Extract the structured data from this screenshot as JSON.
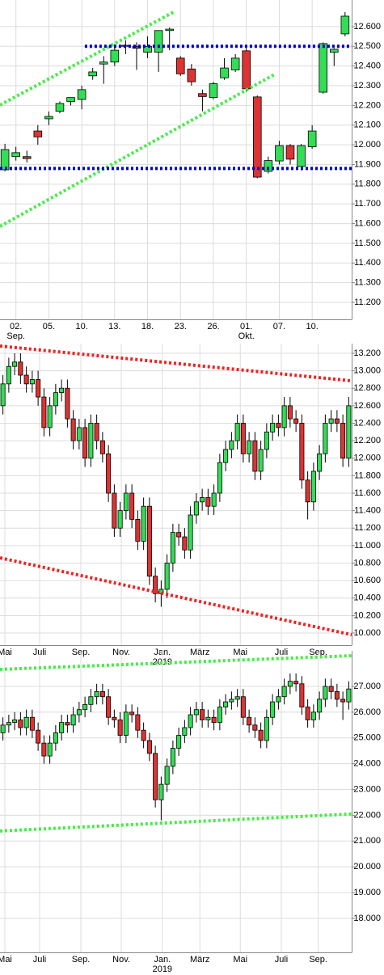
{
  "chart_data": [
    {
      "type": "candlestick",
      "up_color": "#33dd55",
      "down_color": "#dd3333",
      "grid": true,
      "xlim": [
        -0.45,
        31.6
      ],
      "ylim": [
        11.114,
        12.735
      ],
      "yticks": [
        {
          "value": 11.2,
          "label": "11.200"
        },
        {
          "value": 11.3,
          "label": "11.300"
        },
        {
          "value": 11.4,
          "label": "11.400"
        },
        {
          "value": 11.5,
          "label": "11.500"
        },
        {
          "value": 11.6,
          "label": "11.600"
        },
        {
          "value": 11.7,
          "label": "11.700"
        },
        {
          "value": 11.8,
          "label": "11.800"
        },
        {
          "value": 11.9,
          "label": "11.900"
        },
        {
          "value": 12.0,
          "label": "12.000"
        },
        {
          "value": 12.1,
          "label": "12.100"
        },
        {
          "value": 12.2,
          "label": "12.200"
        },
        {
          "value": 12.3,
          "label": "12.300"
        },
        {
          "value": 12.4,
          "label": "12.400"
        },
        {
          "value": 12.5,
          "label": "12.500"
        },
        {
          "value": 12.6,
          "label": "12.600"
        }
      ],
      "xticks": [
        {
          "value": 1,
          "label": "02."
        },
        {
          "value": 4,
          "label": "05."
        },
        {
          "value": 7,
          "label": "10."
        },
        {
          "value": 10,
          "label": "13."
        },
        {
          "value": 13,
          "label": "18."
        },
        {
          "value": 16,
          "label": "23."
        },
        {
          "value": 19,
          "label": "26."
        },
        {
          "value": 22,
          "label": "01."
        },
        {
          "value": 25,
          "label": "07."
        },
        {
          "value": 28,
          "label": "10."
        }
      ],
      "xticks_sub": [
        {
          "value": 1,
          "label": "Sep."
        },
        {
          "value": 22,
          "label": "Okt."
        }
      ],
      "open": [
        11.873,
        11.94,
        11.94,
        12.07,
        12.132,
        12.17,
        12.22,
        12.23,
        12.35,
        12.41,
        12.42,
        12.505,
        12.5,
        12.47,
        12.47,
        12.58,
        12.44,
        12.385,
        12.26,
        12.24,
        12.34,
        12.38,
        12.477,
        12.243,
        11.865,
        11.918,
        11.996,
        11.89,
        11.99,
        12.267,
        12.47,
        12.563
      ],
      "high": [
        12.005,
        11.99,
        11.97,
        12.1,
        12.169,
        12.22,
        12.24,
        12.3,
        12.39,
        12.45,
        12.51,
        12.53,
        12.52,
        12.55,
        12.58,
        12.595,
        12.45,
        12.41,
        12.28,
        12.32,
        12.44,
        12.46,
        12.49,
        12.25,
        11.94,
        12.02,
        12.004,
        12.004,
        12.1,
        12.52,
        12.49,
        12.674
      ],
      "low": [
        11.865,
        11.92,
        11.91,
        12.0,
        12.1,
        12.16,
        12.2,
        12.18,
        12.33,
        12.31,
        12.4,
        12.46,
        12.38,
        12.44,
        12.37,
        12.48,
        12.35,
        12.3,
        12.17,
        12.23,
        12.33,
        12.37,
        12.27,
        11.83,
        11.855,
        11.9,
        11.9,
        11.87,
        11.98,
        12.26,
        12.4,
        12.55
      ],
      "close": [
        11.976,
        11.96,
        11.93,
        12.04,
        12.144,
        12.21,
        12.24,
        12.28,
        12.37,
        12.42,
        12.48,
        12.5,
        12.49,
        12.5,
        12.58,
        12.587,
        12.36,
        12.32,
        12.245,
        12.31,
        12.39,
        12.44,
        12.284,
        11.836,
        11.92,
        11.996,
        11.927,
        11.996,
        12.07,
        12.514,
        12.485,
        12.653
      ],
      "lines": [
        {
          "color": "#44ee44",
          "points": [
            [
              -0.45,
              12.202
            ],
            [
              15.38,
              12.674
            ]
          ]
        },
        {
          "color": "#44ee44",
          "points": [
            [
              -0.45,
              11.586
            ],
            [
              24.59,
              12.358
            ]
          ]
        },
        {
          "color": "#0000cc",
          "points": [
            [
              7.28,
              12.5
            ],
            [
              31.6,
              12.5
            ]
          ]
        },
        {
          "color": "#0000cc",
          "points": [
            [
              -0.45,
              11.88
            ],
            [
              31.6,
              11.88
            ]
          ]
        }
      ]
    },
    {
      "type": "candlestick",
      "up_color": "#33dd55",
      "down_color": "#dd3333",
      "grid": true,
      "xlim": [
        -0.5,
        59.5
      ],
      "ylim": [
        9.861,
        13.311
      ],
      "yticks": [
        {
          "value": 10.0,
          "label": "10.000"
        },
        {
          "value": 10.2,
          "label": "10.200"
        },
        {
          "value": 10.4,
          "label": "10.400"
        },
        {
          "value": 10.6,
          "label": "10.600"
        },
        {
          "value": 10.8,
          "label": "10.800"
        },
        {
          "value": 11.0,
          "label": "11.000"
        },
        {
          "value": 11.2,
          "label": "11.200"
        },
        {
          "value": 11.4,
          "label": "11.400"
        },
        {
          "value": 11.6,
          "label": "11.600"
        },
        {
          "value": 11.8,
          "label": "11.800"
        },
        {
          "value": 12.0,
          "label": "12.000"
        },
        {
          "value": 12.2,
          "label": "12.200"
        },
        {
          "value": 12.4,
          "label": "12.400"
        },
        {
          "value": 12.6,
          "label": "12.600"
        },
        {
          "value": 12.8,
          "label": "12.800"
        },
        {
          "value": 13.0,
          "label": "13.000"
        },
        {
          "value": 13.2,
          "label": "13.200"
        }
      ],
      "xticks": [
        {
          "value": 0.33,
          "label": "Mai"
        },
        {
          "value": 6.26,
          "label": "Juli"
        },
        {
          "value": 13.3,
          "label": "Sep."
        },
        {
          "value": 20.2,
          "label": "Nov."
        },
        {
          "value": 27.2,
          "label": "Jan."
        },
        {
          "value": 33.6,
          "label": "März"
        },
        {
          "value": 40.5,
          "label": "Mai"
        },
        {
          "value": 47.5,
          "label": "Juli"
        },
        {
          "value": 53.8,
          "label": "Sep."
        }
      ],
      "xticks_sub": [
        {
          "value": 27.2,
          "label": "2019"
        }
      ],
      "open": [
        12.6,
        12.85,
        13.05,
        13.1,
        12.95,
        12.85,
        12.9,
        12.7,
        12.35,
        12.6,
        12.75,
        12.8,
        12.45,
        12.2,
        12.35,
        12.0,
        12.4,
        12.2,
        12.05,
        11.6,
        11.2,
        11.4,
        11.6,
        11.3,
        11.05,
        11.45,
        10.65,
        10.45,
        10.5,
        10.8,
        11.15,
        11.1,
        10.95,
        11.35,
        11.5,
        11.55,
        11.45,
        11.6,
        11.95,
        12.1,
        12.2,
        12.4,
        12.05,
        12.2,
        11.85,
        12.1,
        12.3,
        12.4,
        12.35,
        12.6,
        12.45,
        12.4,
        11.75,
        11.5,
        11.85,
        12.05,
        12.4,
        12.45,
        12.4,
        12.0
      ],
      "high": [
        12.95,
        13.15,
        13.2,
        13.2,
        13.05,
        13.0,
        13.0,
        12.8,
        12.7,
        12.85,
        12.9,
        12.9,
        12.55,
        12.45,
        12.45,
        12.5,
        12.5,
        12.3,
        12.15,
        11.7,
        11.5,
        11.7,
        11.7,
        11.4,
        11.55,
        11.55,
        10.75,
        10.6,
        10.9,
        11.25,
        11.25,
        11.2,
        11.45,
        11.6,
        11.65,
        11.65,
        11.7,
        12.05,
        12.2,
        12.3,
        12.5,
        12.5,
        12.3,
        12.3,
        12.2,
        12.4,
        12.5,
        12.5,
        12.7,
        12.7,
        12.55,
        12.5,
        11.85,
        11.95,
        12.15,
        12.5,
        12.55,
        12.55,
        12.5,
        12.7
      ],
      "low": [
        12.5,
        12.75,
        12.95,
        12.85,
        12.75,
        12.75,
        12.6,
        12.25,
        12.25,
        12.5,
        12.65,
        12.35,
        12.1,
        12.1,
        11.9,
        11.9,
        12.1,
        11.95,
        11.5,
        11.1,
        11.1,
        11.3,
        11.2,
        10.95,
        10.95,
        10.55,
        10.35,
        10.3,
        10.4,
        10.7,
        11.0,
        10.85,
        10.85,
        11.25,
        11.4,
        11.35,
        11.35,
        11.5,
        11.85,
        12.0,
        12.1,
        11.95,
        11.95,
        11.75,
        11.75,
        12.0,
        12.2,
        12.25,
        12.25,
        12.35,
        12.3,
        11.65,
        11.3,
        11.4,
        11.75,
        11.95,
        12.3,
        12.3,
        11.9,
        11.9
      ],
      "close": [
        12.85,
        13.05,
        13.1,
        12.95,
        12.85,
        12.9,
        12.7,
        12.35,
        12.6,
        12.75,
        12.8,
        12.45,
        12.2,
        12.35,
        12.0,
        12.4,
        12.2,
        12.05,
        11.6,
        11.2,
        11.4,
        11.6,
        11.3,
        11.05,
        11.45,
        10.65,
        10.45,
        10.5,
        10.8,
        11.15,
        11.1,
        10.95,
        11.35,
        11.5,
        11.55,
        11.45,
        11.6,
        11.95,
        12.1,
        12.2,
        12.4,
        12.05,
        12.2,
        11.85,
        12.1,
        12.3,
        12.4,
        12.35,
        12.6,
        12.45,
        12.4,
        11.75,
        11.5,
        11.85,
        12.05,
        12.4,
        12.45,
        12.4,
        12.0,
        12.6
      ],
      "lines": [
        {
          "color": "#ee2222",
          "points": [
            [
              -0.5,
              13.283
            ],
            [
              59.5,
              12.885
            ]
          ]
        },
        {
          "color": "#ee2222",
          "points": [
            [
              -0.5,
              10.86
            ],
            [
              59.5,
              9.98
            ]
          ]
        }
      ]
    },
    {
      "type": "candlestick",
      "up_color": "#33dd55",
      "down_color": "#dd3333",
      "grid": true,
      "xlim": [
        -0.5,
        59.5
      ],
      "ylim": [
        16.68,
        28.38
      ],
      "yticks": [
        {
          "value": 18,
          "label": "18.000"
        },
        {
          "value": 19,
          "label": "19.000"
        },
        {
          "value": 20,
          "label": "20.000"
        },
        {
          "value": 21,
          "label": "21.000"
        },
        {
          "value": 22,
          "label": "22.000"
        },
        {
          "value": 23,
          "label": "23.000"
        },
        {
          "value": 24,
          "label": "24.000"
        },
        {
          "value": 25,
          "label": "25.000"
        },
        {
          "value": 26,
          "label": "26.000"
        },
        {
          "value": 27,
          "label": "27.000"
        }
      ],
      "xticks": [
        {
          "value": 0.33,
          "label": "Mai"
        },
        {
          "value": 6.26,
          "label": "Juli"
        },
        {
          "value": 13.3,
          "label": "Sep."
        },
        {
          "value": 20.2,
          "label": "Nov."
        },
        {
          "value": 27.2,
          "label": "Jan."
        },
        {
          "value": 33.6,
          "label": "März"
        },
        {
          "value": 40.5,
          "label": "Mai"
        },
        {
          "value": 47.5,
          "label": "Juli"
        },
        {
          "value": 53.8,
          "label": "Sep."
        }
      ],
      "xticks_sub": [
        {
          "value": 27.2,
          "label": "2019"
        }
      ],
      "open": [
        25.2,
        25.5,
        25.6,
        25.7,
        25.4,
        25.8,
        25.3,
        24.8,
        24.3,
        24.8,
        25.2,
        25.6,
        25.5,
        25.9,
        26.1,
        26.3,
        26.6,
        26.8,
        26.6,
        25.8,
        25.7,
        25.1,
        26.0,
        25.9,
        25.3,
        24.9,
        24.4,
        22.6,
        23.2,
        23.9,
        24.6,
        25.1,
        25.4,
        25.9,
        26.1,
        25.7,
        25.8,
        25.6,
        26.2,
        26.4,
        26.5,
        26.6,
        25.8,
        25.5,
        25.3,
        24.9,
        25.8,
        26.4,
        26.6,
        27.0,
        27.2,
        27.1,
        26.2,
        25.7,
        26.0,
        26.5,
        27.0,
        26.8,
        26.5,
        26.4
      ],
      "high": [
        25.8,
        25.9,
        26.0,
        26.0,
        26.1,
        26.1,
        25.6,
        25.1,
        25.1,
        25.5,
        25.9,
        25.9,
        26.2,
        26.4,
        26.6,
        26.9,
        27.1,
        27.1,
        26.9,
        26.1,
        26.0,
        26.3,
        26.3,
        26.2,
        25.6,
        25.2,
        24.7,
        23.5,
        24.2,
        24.9,
        25.4,
        25.7,
        26.2,
        26.4,
        26.4,
        26.1,
        26.1,
        26.5,
        26.7,
        26.8,
        26.9,
        26.9,
        26.1,
        25.8,
        25.6,
        26.1,
        26.7,
        26.9,
        27.3,
        27.5,
        27.5,
        27.4,
        26.5,
        26.3,
        26.8,
        27.3,
        27.3,
        27.1,
        26.8,
        27.2
      ],
      "low": [
        24.9,
        25.2,
        25.3,
        25.1,
        25.1,
        25.0,
        24.5,
        24.0,
        24.0,
        24.5,
        24.9,
        25.2,
        25.2,
        25.6,
        25.8,
        26.0,
        26.3,
        26.3,
        25.5,
        25.4,
        24.8,
        24.8,
        25.6,
        25.0,
        24.6,
        24.1,
        22.3,
        21.8,
        22.9,
        23.6,
        24.3,
        24.8,
        25.1,
        25.6,
        25.4,
        25.4,
        25.3,
        25.3,
        25.9,
        26.1,
        26.2,
        25.5,
        25.2,
        25.0,
        24.6,
        24.6,
        25.5,
        26.1,
        26.3,
        26.7,
        26.8,
        25.9,
        25.4,
        25.4,
        25.7,
        26.2,
        26.5,
        26.2,
        25.7,
        26.1
      ],
      "close": [
        25.5,
        25.6,
        25.7,
        25.4,
        25.8,
        25.3,
        24.8,
        24.3,
        24.8,
        25.2,
        25.6,
        25.5,
        25.9,
        26.1,
        26.3,
        26.6,
        26.8,
        26.6,
        25.8,
        25.7,
        25.1,
        26.0,
        25.9,
        25.3,
        24.9,
        24.4,
        22.6,
        23.2,
        23.9,
        24.6,
        25.1,
        25.4,
        25.9,
        26.1,
        25.7,
        25.8,
        25.6,
        26.2,
        26.4,
        26.5,
        26.6,
        25.8,
        25.5,
        25.3,
        24.9,
        25.8,
        26.4,
        26.6,
        27.0,
        27.2,
        27.1,
        26.2,
        25.7,
        26.0,
        26.5,
        27.0,
        26.8,
        26.5,
        26.4,
        26.9
      ],
      "lines": [
        {
          "color": "#44ee44",
          "points": [
            [
              -0.5,
              27.66
            ],
            [
              59.5,
              28.19
            ]
          ]
        },
        {
          "color": "#44ee44",
          "points": [
            [
              -0.5,
              21.39
            ],
            [
              59.5,
              22.05
            ]
          ]
        }
      ]
    }
  ]
}
